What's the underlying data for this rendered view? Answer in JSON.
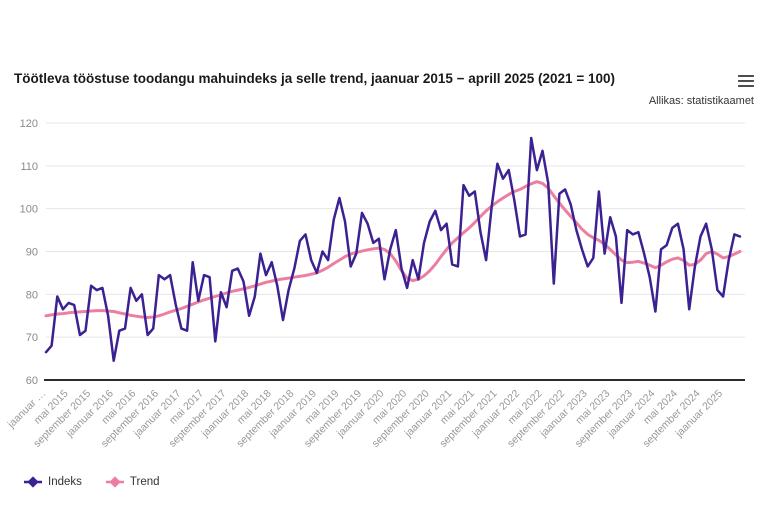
{
  "header": {
    "title": "Töötleva tööstuse toodangu mahuindeks ja selle trend, jaanuar 2015 − aprill 2025 (2021 = 100)",
    "source": "Allikas: statistikaamet"
  },
  "menu": {
    "icon": "hamburger-menu-icon"
  },
  "legend": {
    "items": [
      {
        "label": "Indeks",
        "color": "#3b2191"
      },
      {
        "label": "Trend",
        "color": "#ec7fa1"
      }
    ]
  },
  "chart_data": {
    "type": "line",
    "title": "Töötleva tööstuse toodangu mahuindeks ja selle trend, jaanuar 2015 − aprill 2025 (2021 = 100)",
    "xlabel": "",
    "ylabel": "",
    "frequency": "monthly",
    "x_start": "jaanuar 2015",
    "x_end": "aprill 2025",
    "ylim": [
      60,
      120
    ],
    "yticks": [
      60,
      70,
      80,
      90,
      100,
      110,
      120
    ],
    "grid": true,
    "legend_position": "bottom-left",
    "x_tick_step_months": 4,
    "x_tick_labels": [
      "jaanuar …",
      "mai 2015",
      "september 2015",
      "jaanuar 2016",
      "mai 2016",
      "september 2016",
      "jaanuar 2017",
      "mai 2017",
      "september 2017",
      "jaanuar 2018",
      "mai 2018",
      "september 2018",
      "jaanuar 2019",
      "mai 2019",
      "september 2019",
      "jaanuar 2020",
      "mai 2020",
      "september 2020",
      "jaanuar 2021",
      "mai 2021",
      "september 2021",
      "jaanuar 2022",
      "mai 2022",
      "september 2022",
      "jaanuar 2023",
      "mai 2023",
      "september 2023",
      "jaanuar 2024",
      "mai 2024",
      "september 2024",
      "jaanuar 2025"
    ],
    "series": [
      {
        "name": "Indeks",
        "color": "#3b2191",
        "line_width": 2.5,
        "values": [
          66.5,
          68,
          79.5,
          76.5,
          78,
          77.5,
          70.5,
          71.5,
          82,
          81,
          81.5,
          75,
          64.5,
          71.5,
          72,
          81.5,
          78.5,
          80,
          70.5,
          72,
          84.5,
          83.5,
          84.5,
          77.5,
          72,
          71.5,
          87.5,
          78.5,
          84.5,
          84,
          69,
          80.5,
          77,
          85.5,
          86,
          83,
          75,
          79.5,
          89.5,
          84.5,
          87.5,
          82,
          74,
          81,
          86,
          92.5,
          94,
          88,
          85,
          90,
          88,
          97.5,
          102.5,
          97,
          86.5,
          89.5,
          99,
          96.5,
          92,
          93,
          83.5,
          90.5,
          95,
          86,
          81.5,
          88,
          83.5,
          92,
          97,
          99.5,
          95,
          96.5,
          87,
          86.5,
          105.5,
          103,
          104,
          94.5,
          88,
          100.5,
          110.5,
          107,
          109,
          102,
          93.5,
          94,
          116.5,
          109,
          113.5,
          106,
          82.5,
          103.5,
          104.5,
          101,
          95,
          90.5,
          86.5,
          88.5,
          104,
          89.5,
          98,
          93.5,
          78,
          95,
          94,
          94.5,
          89.5,
          84,
          76,
          90.5,
          91.5,
          95.5,
          96.5,
          90.5,
          76.5,
          86.5,
          93.5,
          96.5,
          90.5,
          81,
          79.5,
          88,
          94,
          93.5
        ]
      },
      {
        "name": "Trend",
        "color": "#ec7fa1",
        "line_width": 3,
        "values": [
          75,
          75.2,
          75.4,
          75.5,
          75.7,
          75.8,
          75.9,
          76,
          76.1,
          76.2,
          76.2,
          76.1,
          76,
          75.7,
          75.4,
          75.1,
          74.9,
          74.7,
          74.6,
          74.7,
          75,
          75.4,
          75.9,
          76.3,
          76.7,
          77.2,
          77.7,
          78.2,
          78.7,
          79.1,
          79.5,
          79.9,
          80.3,
          80.7,
          81,
          81.3,
          81.6,
          82,
          82.4,
          82.8,
          83.1,
          83.4,
          83.6,
          83.8,
          84,
          84.2,
          84.4,
          84.7,
          85,
          85.6,
          86.3,
          87.2,
          88,
          88.8,
          89.4,
          89.8,
          90.1,
          90.4,
          90.6,
          90.8,
          90.5,
          89.5,
          87.8,
          85.5,
          83.8,
          83.2,
          83.5,
          84.3,
          85.5,
          87,
          88.8,
          90.5,
          92,
          93.2,
          94.4,
          95.5,
          96.8,
          98.2,
          99.5,
          100.6,
          101.6,
          102.5,
          103.3,
          104,
          104.5,
          105.2,
          105.8,
          106.3,
          105.9,
          104.8,
          103,
          101.3,
          99.7,
          98.2,
          96.7,
          95.2,
          94,
          93.2,
          92.6,
          91.7,
          90.5,
          89.2,
          88,
          87.4,
          87.5,
          87.7,
          87.3,
          86.8,
          86.2,
          86.8,
          87.6,
          88.2,
          88.5,
          87.9,
          86.8,
          87,
          88,
          89.5,
          90,
          89.4,
          88.5,
          88.8,
          89.4,
          90
        ]
      }
    ]
  }
}
